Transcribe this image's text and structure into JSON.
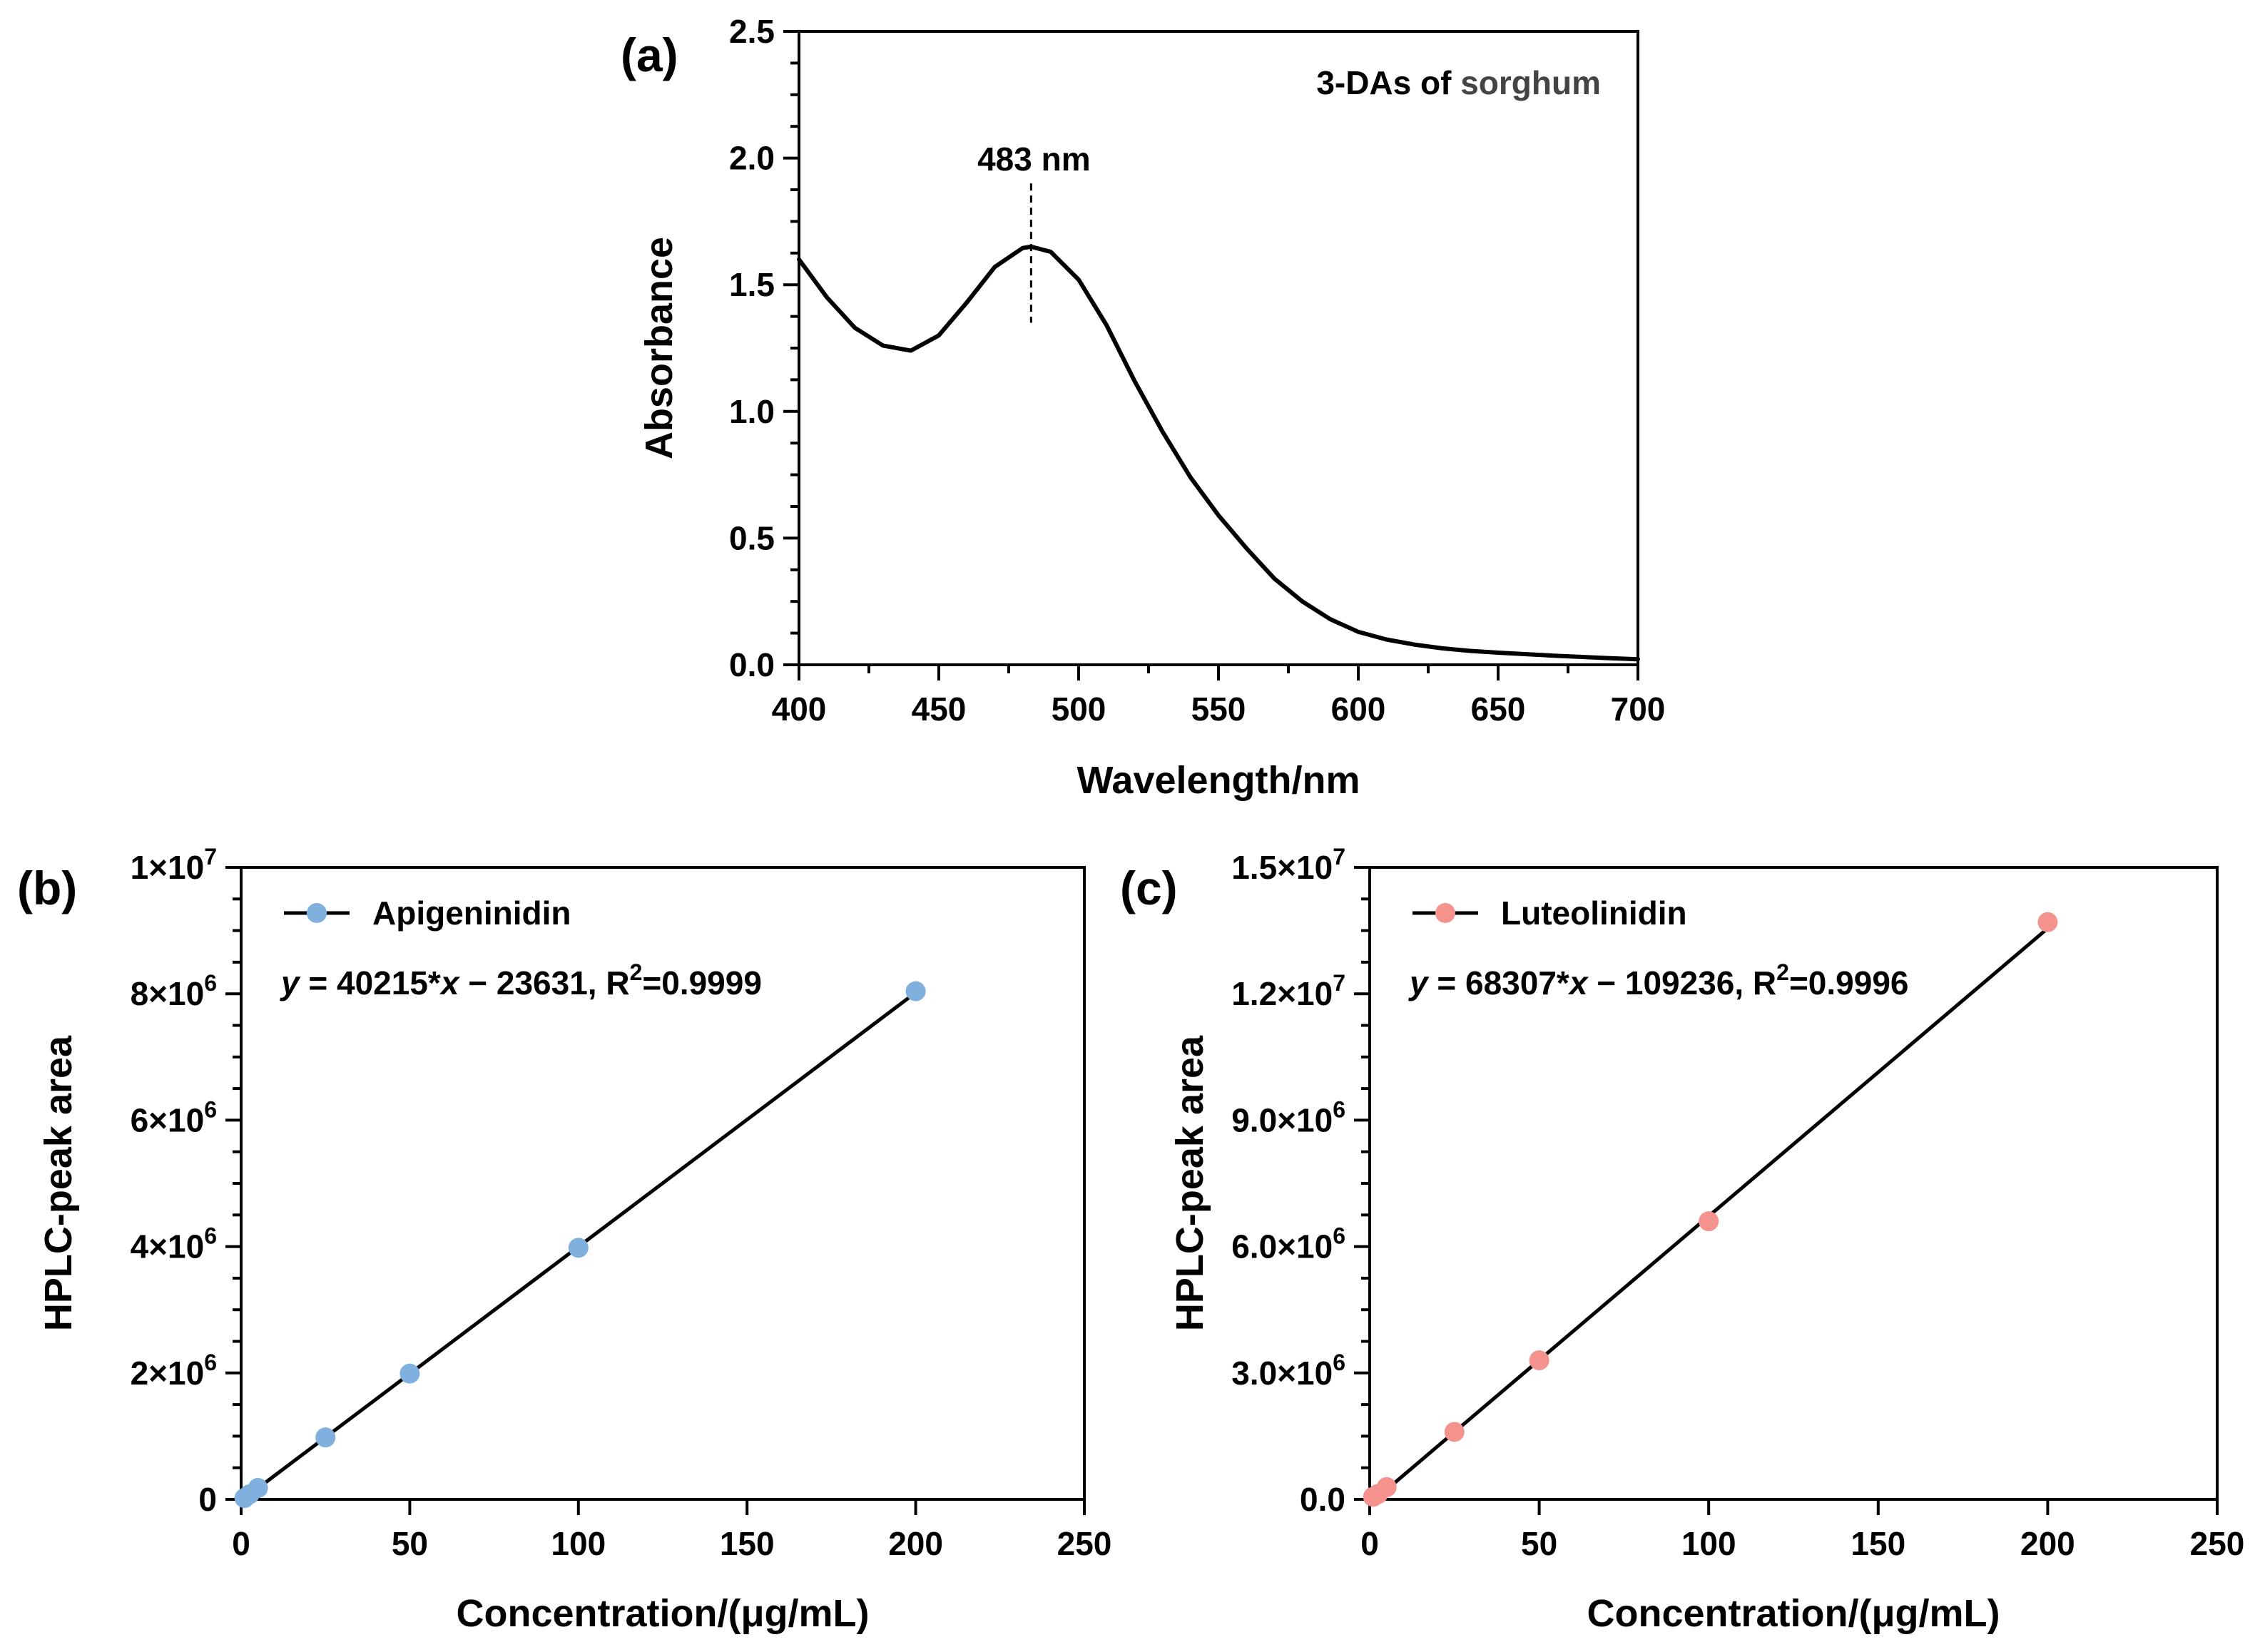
{
  "chart_data": [
    {
      "id": "a",
      "type": "line",
      "panel_label": "(a)",
      "title": "3-DAs of sorghum",
      "title_parts": [
        "3-DAs of ",
        "sorghum"
      ],
      "xlabel": "Wavelength/nm",
      "ylabel": "Absorbance",
      "xlim": [
        400,
        700
      ],
      "ylim": [
        0,
        2.5
      ],
      "x_ticks": [
        400,
        450,
        500,
        550,
        600,
        650,
        700
      ],
      "x_tick_labels": [
        "400",
        "450",
        "500",
        "550",
        "600",
        "650",
        "700"
      ],
      "y_ticks": [
        0,
        0.5,
        1.0,
        1.5,
        2.0,
        2.5
      ],
      "y_tick_labels": [
        "0.0",
        "0.5",
        "1.0",
        "1.5",
        "2.0",
        "2.5"
      ],
      "annotation": {
        "text": "483 nm",
        "x": 483,
        "y_from": 1.35,
        "y_to": 1.9
      },
      "series": [
        {
          "name": "3-DAs of sorghum",
          "color": "#000000",
          "x": [
            400,
            410,
            420,
            430,
            440,
            450,
            460,
            470,
            480,
            483,
            490,
            500,
            510,
            520,
            530,
            540,
            550,
            560,
            570,
            580,
            590,
            600,
            610,
            620,
            630,
            640,
            650,
            660,
            670,
            680,
            690,
            700
          ],
          "y": [
            1.6,
            1.45,
            1.33,
            1.26,
            1.24,
            1.3,
            1.43,
            1.57,
            1.645,
            1.65,
            1.63,
            1.52,
            1.34,
            1.12,
            0.92,
            0.74,
            0.59,
            0.46,
            0.34,
            0.25,
            0.18,
            0.13,
            0.1,
            0.08,
            0.065,
            0.055,
            0.048,
            0.042,
            0.036,
            0.031,
            0.026,
            0.022
          ]
        }
      ]
    },
    {
      "id": "b",
      "type": "scatter",
      "panel_label": "(b)",
      "title": "",
      "xlabel": "Concentration/(μg/mL)",
      "ylabel": "HPLC-peak area",
      "xlim": [
        0,
        250
      ],
      "ylim": [
        0,
        10000000
      ],
      "x_ticks": [
        0,
        50,
        100,
        150,
        200,
        250
      ],
      "x_tick_labels": [
        "0",
        "50",
        "100",
        "150",
        "200",
        "250"
      ],
      "y_ticks": [
        0,
        2000000,
        4000000,
        6000000,
        8000000,
        10000000
      ],
      "y_tick_labels": [
        "0",
        "2×10",
        "4×10",
        "6×10",
        "8×10",
        "1×10"
      ],
      "y_tick_exponents": [
        "",
        "6",
        "6",
        "6",
        "6",
        "7"
      ],
      "legend": {
        "label": "Apigeninidin",
        "position": "top-left"
      },
      "equation": {
        "y_var": "y",
        "eq": " = 40215*",
        "x_var": "x",
        "rest": " − 23631, R",
        "sup": "2",
        "tail": "=0.9999"
      },
      "fit": {
        "slope": 40215,
        "intercept": -23631,
        "r2": 0.9999,
        "x_range": [
          1,
          200
        ]
      },
      "series": [
        {
          "name": "Apigeninidin",
          "color": "#7FB0DE",
          "x": [
            1,
            2.5,
            5,
            25,
            50,
            100,
            200
          ],
          "y": [
            20000,
            80000,
            180000,
            980000,
            1990000,
            3980000,
            8040000
          ]
        }
      ]
    },
    {
      "id": "c",
      "type": "scatter",
      "panel_label": "(c)",
      "title": "",
      "xlabel": "Concentration/(μg/mL)",
      "ylabel": "HPLC-peak area",
      "xlim": [
        0,
        250
      ],
      "ylim": [
        0,
        15000000
      ],
      "x_ticks": [
        0,
        50,
        100,
        150,
        200,
        250
      ],
      "x_tick_labels": [
        "0",
        "50",
        "100",
        "150",
        "200",
        "250"
      ],
      "y_ticks": [
        0,
        3000000,
        6000000,
        9000000,
        12000000,
        15000000
      ],
      "y_tick_labels": [
        "0.0",
        "3.0×10",
        "6.0×10",
        "9.0×10",
        "1.2×10",
        "1.5×10"
      ],
      "y_tick_exponents": [
        "",
        "6",
        "6",
        "6",
        "7",
        "7"
      ],
      "legend": {
        "label": "Luteolinidin",
        "position": "top-left"
      },
      "equation": {
        "y_var": "y",
        "eq": " = 68307*",
        "x_var": "x",
        "rest": " − 109236, R",
        "sup": "2",
        "tail": "=0.9996"
      },
      "fit": {
        "slope": 68307,
        "intercept": -109236,
        "r2": 0.9996,
        "x_range": [
          1,
          200
        ]
      },
      "series": [
        {
          "name": "Luteolinidin",
          "color": "#F4928E",
          "x": [
            1,
            2.5,
            5,
            25,
            50,
            100,
            200
          ],
          "y": [
            60000,
            130000,
            290000,
            1600000,
            3300000,
            6600000,
            13700000
          ]
        }
      ]
    }
  ]
}
